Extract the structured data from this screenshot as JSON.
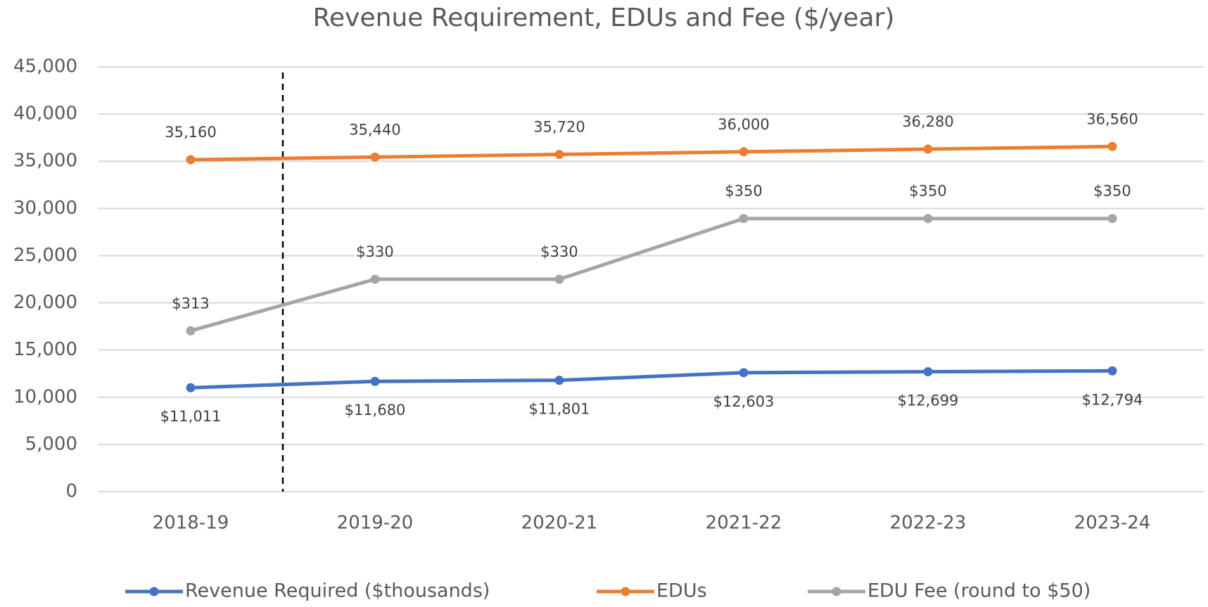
{
  "chart_data": {
    "type": "line",
    "title": "Revenue Requirement, EDUs and Fee ($/year)",
    "categories": [
      "2018-19",
      "2019-20",
      "2020-21",
      "2021-22",
      "2022-23",
      "2023-24"
    ],
    "series": [
      {
        "name": "Revenue Required ($thousands)",
        "color": "#4472c4",
        "values": [
          11011,
          11680,
          11801,
          12603,
          12699,
          12794
        ],
        "value_labels": [
          "$11,011",
          "$11,680",
          "$11,801",
          "$12,603",
          "$12,699",
          "$12,794"
        ]
      },
      {
        "name": "EDUs",
        "color": "#ed7d31",
        "values": [
          35160,
          35440,
          35720,
          36000,
          36280,
          36560
        ],
        "value_labels": [
          "35,160",
          "35,440",
          "35,720",
          "36,000",
          "36,280",
          "36,560"
        ]
      },
      {
        "name": "EDU Fee (round to $50)",
        "color": "#a5a5a5",
        "axis": "y2",
        "values": [
          313,
          330,
          330,
          350,
          350,
          350
        ],
        "value_labels": [
          "$313",
          "$330",
          "$330",
          "$350",
          "$350",
          "$350"
        ]
      }
    ],
    "ylim": [
      0,
      45000
    ],
    "yticks": [
      {
        "value": 0,
        "label": "0"
      },
      {
        "value": 5000,
        "label": "5,000"
      },
      {
        "value": 10000,
        "label": "10,000"
      },
      {
        "value": 15000,
        "label": "15,000"
      },
      {
        "value": 20000,
        "label": "20,000"
      },
      {
        "value": 25000,
        "label": "25,000"
      },
      {
        "value": 30000,
        "label": "30,000"
      },
      {
        "value": 35000,
        "label": "35,000"
      },
      {
        "value": 40000,
        "label": "40,000"
      },
      {
        "value": 45000,
        "label": "45,000"
      }
    ],
    "y2lim": [
      260,
      400
    ],
    "grid": true,
    "legend": "bottom"
  }
}
